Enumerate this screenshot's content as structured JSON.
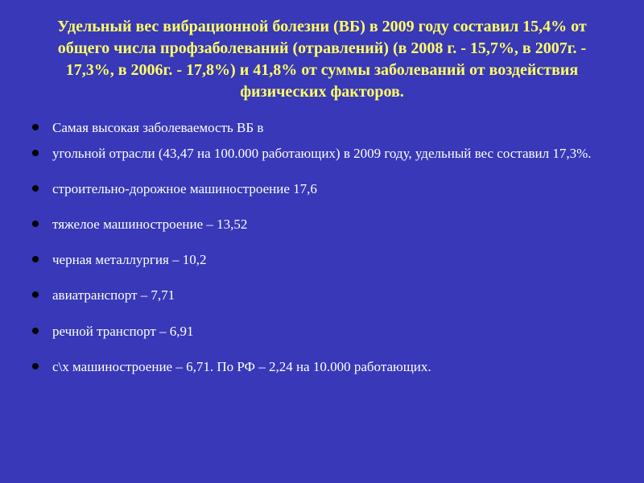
{
  "slide": {
    "title": "Удельный вес вибрационной болезни (ВБ) в 2009 году составил 15,4% от общего числа профзаболеваний (отравлений) (в 2008 г. - 15,7%, в 2007г. - 17,3%, в 2006г. - 17,8%) и 41,8% от суммы заболеваний от воздействия физических факторов.",
    "bullets": [
      "Самая высокая заболеваемость ВБ в",
      "угольной отрасли (43,47 на 100.000 работающих) в 2009 году, удельный вес составил 17,3%.",
      "строительно-дорожное машиностроение 17,6",
      "тяжелое машиностроение – 13,52",
      "черная металлургия – 10,2",
      "авиатранспорт – 7,71",
      "речной транспорт – 6,91",
      "с\\х машиностроение – 6,71. По РФ – 2,24 на 10.000 работающих."
    ],
    "colors": {
      "background": "#3838b8",
      "title": "#ffff66",
      "body": "#ffffff",
      "bullet": "#000000"
    },
    "typography": {
      "title_fontsize": 20,
      "title_weight": "bold",
      "body_fontsize": 17,
      "font_family": "Georgia, Times New Roman, serif"
    }
  }
}
